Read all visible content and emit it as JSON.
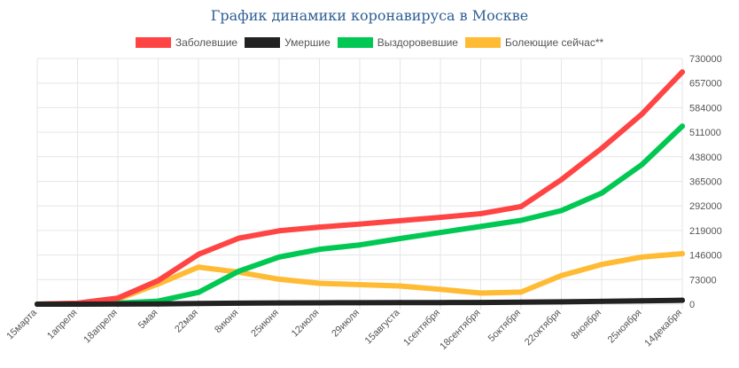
{
  "chart_data": {
    "type": "line",
    "title": "График динамики коронавируса в Москве",
    "categories": [
      "15марта",
      "1апреля",
      "18апреля",
      "5мая",
      "22мая",
      "8июня",
      "25июня",
      "12июля",
      "29июля",
      "15августа",
      "1сентября",
      "18сентября",
      "5октября",
      "22октября",
      "8ноября",
      "25ноября",
      "14декабря"
    ],
    "ylim": [
      0,
      730000
    ],
    "yticks": [
      "730000",
      "657000",
      "584000",
      "511000",
      "438000",
      "365000",
      "292000",
      "219000",
      "146000",
      "73000",
      "0"
    ],
    "grid": true,
    "legend_position": "top",
    "series": [
      {
        "name": "Заболевшие",
        "color": "#ff4444",
        "values": [
          0,
          3000,
          18000,
          70000,
          148000,
          196000,
          218000,
          229000,
          238000,
          248000,
          258000,
          269000,
          290000,
          370000,
          463000,
          565000,
          690000
        ]
      },
      {
        "name": "Умершие",
        "color": "#222222",
        "values": [
          0,
          0,
          200,
          800,
          2000,
          3000,
          3600,
          4000,
          4300,
          4500,
          4700,
          5100,
          5800,
          7000,
          8400,
          9900,
          11500
        ]
      },
      {
        "name": "Выздоровевшие",
        "color": "#00c853",
        "values": [
          0,
          200,
          3000,
          9000,
          35000,
          98000,
          140000,
          163000,
          176000,
          195000,
          213000,
          231000,
          249000,
          278000,
          330000,
          415000,
          529000
        ]
      },
      {
        "name": "Болеющие сейчас**",
        "color": "#ffbb33",
        "values": [
          0,
          2800,
          15000,
          60000,
          110000,
          95000,
          74000,
          62000,
          58000,
          54000,
          44000,
          33000,
          36000,
          85000,
          118000,
          140000,
          150000
        ]
      }
    ]
  }
}
